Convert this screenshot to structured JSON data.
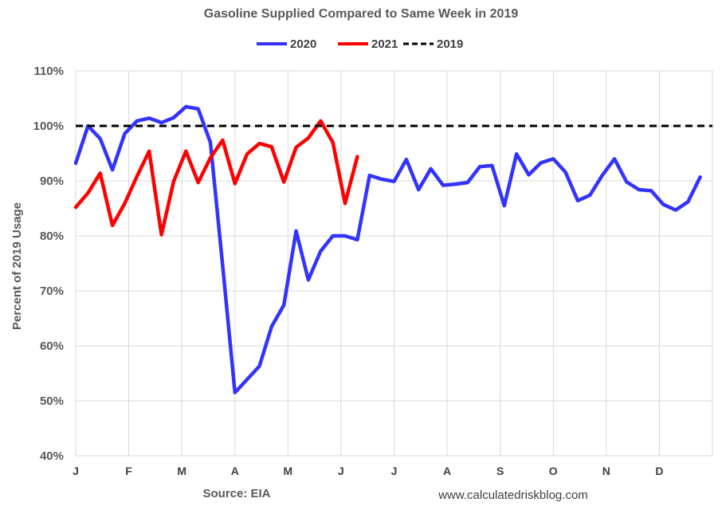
{
  "chart_data": {
    "type": "line",
    "title": "Gasoline Supplied Compared to Same Week in 2019",
    "ylabel": "Percent of 2019 Usage",
    "xlabel": "",
    "ylim": [
      40,
      110
    ],
    "y_ticks": [
      "40%",
      "50%",
      "60%",
      "70%",
      "80%",
      "90%",
      "100%",
      "110%"
    ],
    "y_tick_values": [
      40,
      50,
      60,
      70,
      80,
      90,
      100,
      110
    ],
    "x_month_labels": [
      "J",
      "F",
      "M",
      "A",
      "M",
      "J",
      "J",
      "A",
      "S",
      "O",
      "N",
      "D"
    ],
    "x_unit": "week of year",
    "xlim": [
      1,
      53
    ],
    "grid": true,
    "legend_position": "top-center",
    "series": [
      {
        "name": "2020",
        "color": "#3333ff",
        "dash": "solid",
        "values": [
          93.2,
          100.0,
          97.7,
          92.0,
          98.6,
          100.9,
          101.4,
          100.6,
          101.5,
          103.5,
          103.1,
          97.0,
          74.6,
          51.5,
          53.9,
          56.3,
          63.5,
          67.4,
          80.9,
          72.0,
          77.2,
          80.0,
          80.0,
          79.3,
          91.0,
          90.3,
          89.9,
          93.9,
          88.4,
          92.2,
          89.2,
          89.4,
          89.7,
          92.6,
          92.8,
          85.5,
          94.9,
          91.1,
          93.3,
          94.0,
          91.6,
          86.4,
          87.4,
          91.0,
          94.0,
          89.8,
          88.4,
          88.2,
          85.7,
          84.7,
          86.2,
          90.7
        ]
      },
      {
        "name": "2021",
        "color": "#ff0000",
        "dash": "solid",
        "values": [
          85.2,
          87.8,
          91.4,
          81.9,
          85.9,
          90.8,
          95.4,
          80.2,
          89.9,
          95.4,
          89.7,
          94.2,
          97.4,
          89.5,
          94.9,
          96.8,
          96.2,
          89.8,
          96.1,
          97.8,
          100.9,
          97.0,
          85.9,
          94.4
        ]
      },
      {
        "name": "2019",
        "color": "#000000",
        "dash": "dashed",
        "values": [
          100,
          100
        ]
      }
    ]
  },
  "footer": {
    "source": "Source: EIA",
    "credit": "www.calculatedriskblog.com"
  }
}
